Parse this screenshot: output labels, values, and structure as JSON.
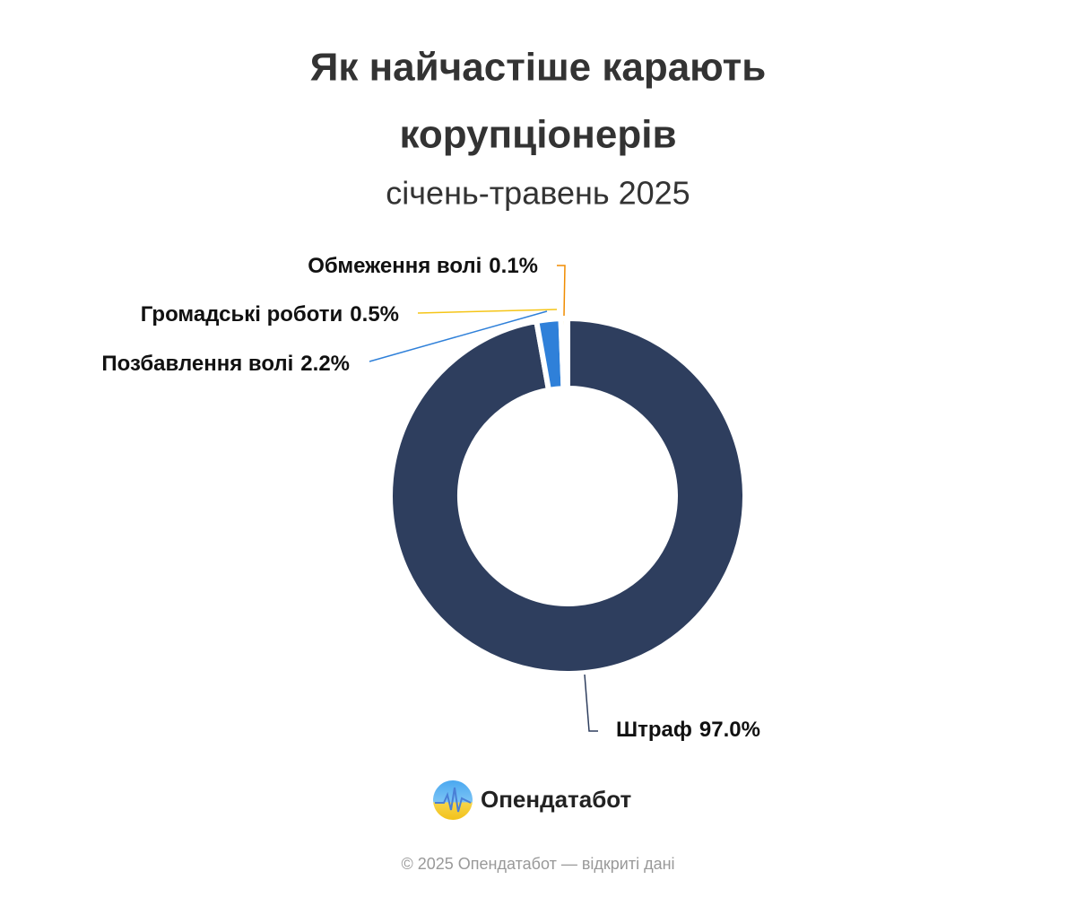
{
  "chart_data": {
    "type": "donut",
    "title": [
      "Як найчастіше карають",
      "корупціонерів"
    ],
    "subtitle": "січень-травень 2025",
    "categories": [
      "Штраф",
      "Позбавлення волі",
      "Громадські роботи",
      "Обмеження волі"
    ],
    "values": [
      97.0,
      2.2,
      0.5,
      0.1
    ],
    "value_labels": [
      "97.0%",
      "2.2%",
      "0.5%",
      "0.1%"
    ],
    "colors": [
      "#2e3e5e",
      "#2f80d9",
      "#f5c518",
      "#f08c00"
    ]
  },
  "footer": {
    "brand": "Опендатабот",
    "copyright": "© 2025 Опендатабот — відкриті дані"
  }
}
